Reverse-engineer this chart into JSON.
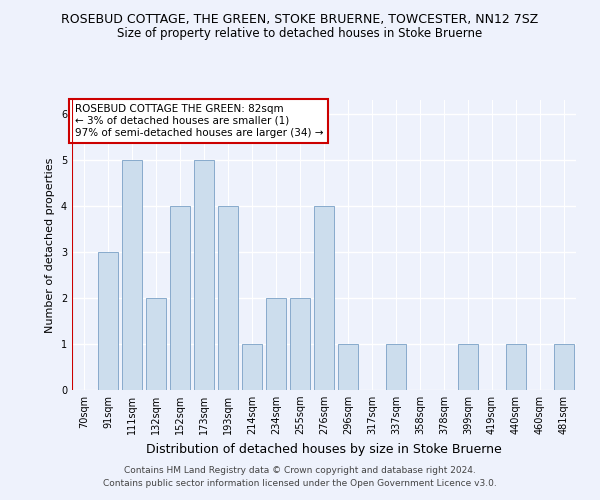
{
  "title": "ROSEBUD COTTAGE, THE GREEN, STOKE BRUERNE, TOWCESTER, NN12 7SZ",
  "subtitle": "Size of property relative to detached houses in Stoke Bruerne",
  "xlabel": "Distribution of detached houses by size in Stoke Bruerne",
  "ylabel": "Number of detached properties",
  "categories": [
    "70sqm",
    "91sqm",
    "111sqm",
    "132sqm",
    "152sqm",
    "173sqm",
    "193sqm",
    "214sqm",
    "234sqm",
    "255sqm",
    "276sqm",
    "296sqm",
    "317sqm",
    "337sqm",
    "358sqm",
    "378sqm",
    "399sqm",
    "419sqm",
    "440sqm",
    "460sqm",
    "481sqm"
  ],
  "values": [
    0,
    3,
    5,
    2,
    4,
    5,
    4,
    1,
    2,
    2,
    4,
    1,
    0,
    1,
    0,
    0,
    1,
    0,
    1,
    0,
    1
  ],
  "bar_color": "#ccdded",
  "bar_edge_color": "#88aacc",
  "annotation_line1": "ROSEBUD COTTAGE THE GREEN: 82sqm",
  "annotation_line2": "← 3% of detached houses are smaller (1)",
  "annotation_line3": "97% of semi-detached houses are larger (34) →",
  "annotation_box_color": "#ffffff",
  "annotation_box_edge_color": "#cc0000",
  "subject_vline_color": "#cc0000",
  "ylim": [
    0,
    6.3
  ],
  "yticks": [
    0,
    1,
    2,
    3,
    4,
    5,
    6
  ],
  "footer_line1": "Contains HM Land Registry data © Crown copyright and database right 2024.",
  "footer_line2": "Contains public sector information licensed under the Open Government Licence v3.0.",
  "background_color": "#eef2fc",
  "grid_color": "#ffffff",
  "title_fontsize": 9,
  "subtitle_fontsize": 8.5,
  "xlabel_fontsize": 9,
  "ylabel_fontsize": 8,
  "tick_fontsize": 7,
  "annotation_fontsize": 7.5,
  "footer_fontsize": 6.5
}
